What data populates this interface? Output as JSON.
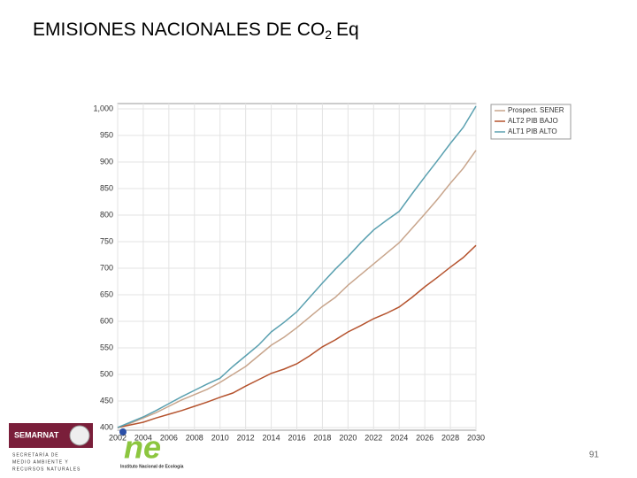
{
  "chart_data": {
    "type": "line",
    "title_parts": [
      "EMISIONES NACIONALES DE CO",
      "2",
      "Eq"
    ],
    "x": [
      2002,
      2003,
      2004,
      2005,
      2006,
      2007,
      2008,
      2009,
      2010,
      2011,
      2012,
      2013,
      2014,
      2015,
      2016,
      2017,
      2018,
      2019,
      2020,
      2021,
      2022,
      2023,
      2024,
      2025,
      2026,
      2027,
      2028,
      2029,
      2030
    ],
    "series": [
      {
        "name": "Prospect. SENER",
        "color": "#c8a58c",
        "values": [
          400,
          408,
          418,
          428,
          440,
          452,
          462,
          472,
          485,
          500,
          515,
          535,
          555,
          570,
          588,
          608,
          628,
          645,
          668,
          688,
          708,
          728,
          748,
          775,
          802,
          830,
          860,
          888,
          922
        ]
      },
      {
        "name": "ALT2 PIB BAJO",
        "color": "#b5532e",
        "values": [
          400,
          405,
          410,
          418,
          425,
          432,
          440,
          448,
          457,
          465,
          478,
          490,
          502,
          510,
          520,
          535,
          552,
          565,
          580,
          592,
          605,
          615,
          627,
          645,
          665,
          683,
          702,
          720,
          743
        ]
      },
      {
        "name": "ALT1 PIB ALTO",
        "color": "#5aa0b0",
        "values": [
          400,
          410,
          420,
          432,
          445,
          458,
          470,
          482,
          493,
          515,
          535,
          555,
          580,
          598,
          618,
          645,
          672,
          698,
          722,
          748,
          772,
          790,
          807,
          840,
          872,
          903,
          935,
          965,
          1005
        ]
      }
    ],
    "xlim": [
      2002,
      2030
    ],
    "xticks": [
      2002,
      2004,
      2006,
      2008,
      2010,
      2012,
      2014,
      2016,
      2018,
      2020,
      2022,
      2024,
      2026,
      2028,
      2030
    ],
    "ylim": [
      395,
      1010
    ],
    "yticks": [
      400,
      450,
      500,
      550,
      600,
      650,
      700,
      750,
      800,
      850,
      900,
      950,
      {
        "value": 1000,
        "label": "1,000"
      }
    ],
    "grid": true,
    "legend": "outside-right"
  },
  "footer": {
    "semarnat": "SEMARNAT",
    "secretaria": [
      "SECRETARÍA DE",
      "MEDIO AMBIENTE Y",
      "RECURSOS NATURALES"
    ],
    "ine": "ne",
    "ine_name": "Instituto Nacional de Ecología",
    "page": "91"
  }
}
